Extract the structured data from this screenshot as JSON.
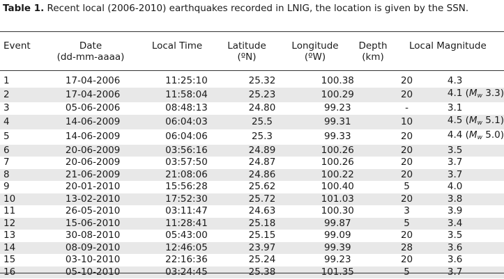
{
  "caption": {
    "label": "Table 1.",
    "text": " Recent local (2006-2010) earthquakes recorded in LNIG, the location is given by the SSN."
  },
  "headers": {
    "event": "Event",
    "date_1": "Date",
    "date_2": "(dd-mm-aaaa)",
    "time": "Local Time",
    "lat_1": "Latitude",
    "lat_2": "(ºN)",
    "lon_1": "Longitude",
    "lon_2": "(ºW)",
    "depth_1": "Depth",
    "depth_2": "(km)",
    "mag": "Local Magnitude"
  },
  "rows": [
    {
      "event": "1",
      "date": "17-04-2006",
      "time": "11:25:10",
      "lat": "25.32",
      "lon": "100.38",
      "depth": "20",
      "mag": "4.3",
      "mw": ""
    },
    {
      "event": "2",
      "date": "17-04-2006",
      "time": "11:58:04",
      "lat": "25.23",
      "lon": "100.29",
      "depth": "20",
      "mag": "4.1",
      "mw": "3.3"
    },
    {
      "event": "3",
      "date": "05-06-2006",
      "time": "08:48:13",
      "lat": "24.80",
      "lon": "99.23",
      "depth": "-",
      "mag": "3.1",
      "mw": ""
    },
    {
      "event": "4",
      "date": "14-06-2009",
      "time": "06:04:03",
      "lat": "25.5",
      "lon": "99.31",
      "depth": "10",
      "mag": "4.5",
      "mw": "5.1"
    },
    {
      "event": "5",
      "date": "14-06-2009",
      "time": "06:04:06",
      "lat": "25.3",
      "lon": "99.33",
      "depth": "20",
      "mag": "4.4",
      "mw": "5.0"
    },
    {
      "event": "6",
      "date": "20-06-2009",
      "time": "03:56:16",
      "lat": "24.89",
      "lon": "100.26",
      "depth": "20",
      "mag": "3.5",
      "mw": ""
    },
    {
      "event": "7",
      "date": "20-06-2009",
      "time": "03:57:50",
      "lat": "24.87",
      "lon": "100.26",
      "depth": "20",
      "mag": "3.7",
      "mw": ""
    },
    {
      "event": "8",
      "date": "21-06-2009",
      "time": "21:08:06",
      "lat": "24.86",
      "lon": "100.22",
      "depth": "20",
      "mag": "3.7",
      "mw": ""
    },
    {
      "event": "9",
      "date": "20-01-2010",
      "time": "15:56:28",
      "lat": "25.62",
      "lon": "100.40",
      "depth": "5",
      "mag": "4.0",
      "mw": ""
    },
    {
      "event": "10",
      "date": "13-02-2010",
      "time": "17:52:30",
      "lat": "25.72",
      "lon": "101.03",
      "depth": "20",
      "mag": "3.8",
      "mw": ""
    },
    {
      "event": "11",
      "date": "26-05-2010",
      "time": "03:11:47",
      "lat": "24.63",
      "lon": "100.30",
      "depth": "3",
      "mag": "3.9",
      "mw": ""
    },
    {
      "event": "12",
      "date": "15-06-2010",
      "time": "11:28:41",
      "lat": "25.18",
      "lon": "99.87",
      "depth": "5",
      "mag": "3.4",
      "mw": ""
    },
    {
      "event": "13",
      "date": "30-08-2010",
      "time": "05:43:00",
      "lat": "25.15",
      "lon": "99.09",
      "depth": "20",
      "mag": "3.5",
      "mw": ""
    },
    {
      "event": "14",
      "date": "08-09-2010",
      "time": "12:46:05",
      "lat": "23.97",
      "lon": "99.39",
      "depth": "28",
      "mag": "3.6",
      "mw": ""
    },
    {
      "event": "15",
      "date": "03-10-2010",
      "time": "22:16:36",
      "lat": "25.24",
      "lon": "99.23",
      "depth": "20",
      "mag": "3.6",
      "mw": ""
    },
    {
      "event": "16",
      "date": "05-10-2010",
      "time": "03:24:45",
      "lat": "25.38",
      "lon": "101.35",
      "depth": "5",
      "mag": "3.7",
      "mw": ""
    }
  ],
  "mw_label": {
    "letter": "M",
    "sub": "w"
  }
}
